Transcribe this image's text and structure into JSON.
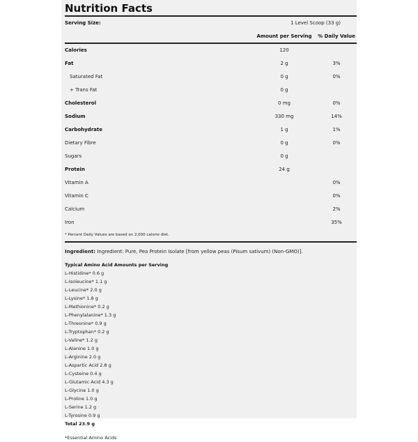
{
  "title": "Nutrition Facts",
  "serving_size": {
    "label": "Serving Size:",
    "value": "1 Level Scoop (33 g)"
  },
  "headers": {
    "amount": "Amount per Serving",
    "daily_value": "% Daily Value"
  },
  "rows": [
    {
      "label": "Calories",
      "amount": "120",
      "dv": "",
      "bold": true
    },
    {
      "label": "Fat",
      "amount": "2 g",
      "dv": "3%",
      "bold": true
    },
    {
      "label": "Saturated Fat",
      "amount": "0 g",
      "dv": "0%",
      "indent": true
    },
    {
      "label": "+ Trans Fat",
      "amount": "0 g",
      "dv": "",
      "indent": true
    },
    {
      "label": "Cholesterol",
      "amount": "0 mg",
      "dv": "0%",
      "bold": true
    },
    {
      "label": "Sodium",
      "amount": "330 mg",
      "dv": "14%",
      "bold": true
    },
    {
      "label": "Carbohydrate",
      "amount": "1 g",
      "dv": "1%",
      "bold": true
    },
    {
      "label": "Dietary Fibre",
      "amount": "0 g",
      "dv": "0%"
    },
    {
      "label": "Sugars",
      "amount": "0 g",
      "dv": ""
    },
    {
      "label": "Protein",
      "amount": "24 g",
      "dv": "",
      "bold": true
    },
    {
      "label": "Vitamin A",
      "amount": "",
      "dv": "0%"
    },
    {
      "label": "Vitamin C",
      "amount": "",
      "dv": "0%"
    },
    {
      "label": "Calcium",
      "amount": "",
      "dv": "2%"
    },
    {
      "label": "Iron",
      "amount": "",
      "dv": "35%"
    }
  ],
  "footnote": "* Percent Daily Values are based on 2,000 calorie diet.",
  "ingredient": {
    "label": "Ingredient:",
    "text": "Ingredient: Pure, Pea Protein Isolate [from yellow peas (Pisum sativum) (Non-GMO)]."
  },
  "amino": {
    "heading": "Typical Amino Acid Amounts per Serving",
    "items": [
      "L-Histidine* 0.6 g",
      "L-Isoleucine* 1.1 g",
      "L-Leucine* 2.0 g",
      "L-Lysine* 1.8 g",
      "L-Methionine* 0.2 g",
      "L-Phenylalanine* 1.3 g",
      "L-Threonine* 0.9 g",
      "L-Tryptophan* 0.2 g",
      "L-Valine* 1.2 g",
      "L-Alanine 1.0 g",
      "L-Arginine 2.0 g",
      "L-Aspartic Acid 2.8 g",
      "L-Cysteine 0.4 g",
      "L-Glutamic Acid 4.3 g",
      "L-Glycine 1.0 g",
      "L-Proline 1.0 g",
      "L-Serine 1.2 g",
      "L-Tyrosine 0.9 g"
    ],
    "total": "Total 23.9 g",
    "note": "*Essential Amino Acids"
  }
}
